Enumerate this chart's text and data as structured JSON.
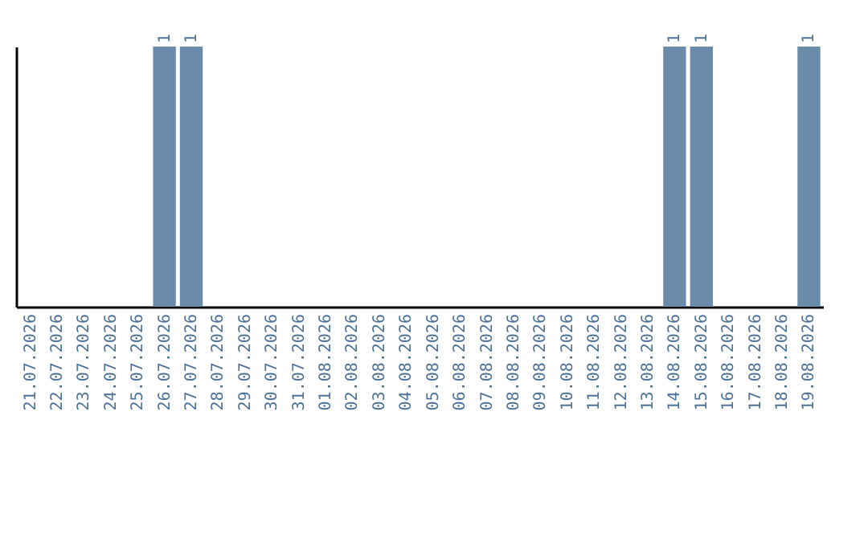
{
  "chart_data": {
    "type": "bar",
    "categories": [
      "21.07.2026",
      "22.07.2026",
      "23.07.2026",
      "24.07.2026",
      "25.07.2026",
      "26.07.2026",
      "27.07.2026",
      "28.07.2026",
      "29.07.2026",
      "30.07.2026",
      "31.07.2026",
      "01.08.2026",
      "02.08.2026",
      "03.08.2026",
      "04.08.2026",
      "05.08.2026",
      "06.08.2026",
      "07.08.2026",
      "08.08.2026",
      "09.08.2026",
      "10.08.2026",
      "11.08.2026",
      "12.08.2026",
      "13.08.2026",
      "14.08.2026",
      "15.08.2026",
      "16.08.2026",
      "17.08.2026",
      "18.08.2026",
      "19.08.2026"
    ],
    "values": [
      0,
      0,
      0,
      0,
      0,
      1,
      1,
      0,
      0,
      0,
      0,
      0,
      0,
      0,
      0,
      0,
      0,
      0,
      0,
      0,
      0,
      0,
      0,
      0,
      1,
      1,
      0,
      0,
      0,
      1
    ],
    "value_labels": [
      null,
      null,
      null,
      null,
      null,
      "1",
      "1",
      null,
      null,
      null,
      null,
      null,
      null,
      null,
      null,
      null,
      null,
      null,
      null,
      null,
      null,
      null,
      null,
      null,
      "1",
      "1",
      null,
      null,
      null,
      "1"
    ],
    "color": "#6a8caa",
    "grid": false,
    "tick_labels": "x"
  }
}
